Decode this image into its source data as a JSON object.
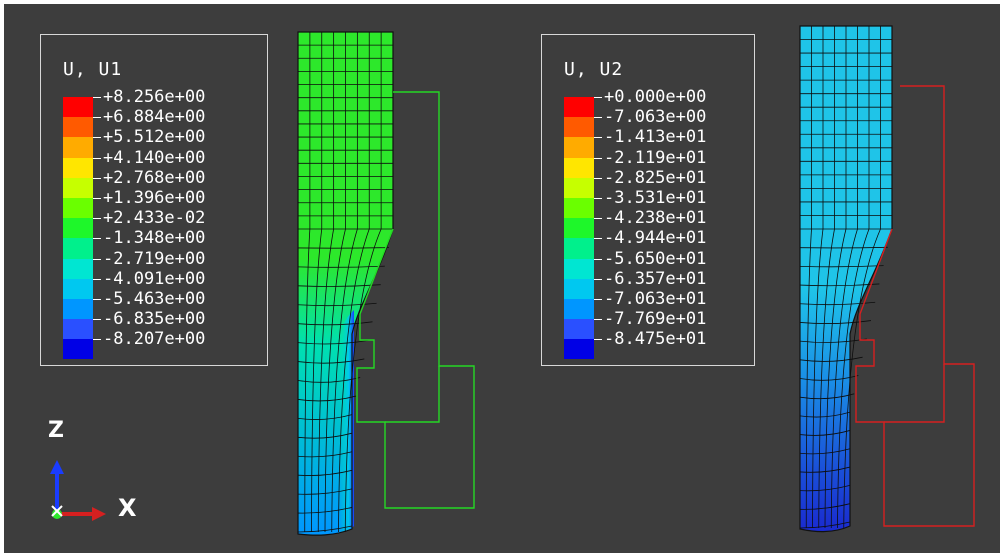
{
  "legends": [
    {
      "title": "U, U1",
      "ticks": [
        "+8.256e+00",
        "+6.884e+00",
        "+5.512e+00",
        "+4.140e+00",
        "+2.768e+00",
        "+1.396e+00",
        "+2.433e-02",
        "-1.348e+00",
        "-2.719e+00",
        "-4.091e+00",
        "-5.463e+00",
        "-6.835e+00",
        "-8.207e+00"
      ]
    },
    {
      "title": "U, U2",
      "ticks": [
        "+0.000e+00",
        "-7.063e+00",
        "-1.413e+01",
        "-2.119e+01",
        "-2.825e+01",
        "-3.531e+01",
        "-4.238e+01",
        "-4.944e+01",
        "-5.650e+01",
        "-6.357e+01",
        "-7.063e+01",
        "-7.769e+01",
        "-8.475e+01"
      ]
    }
  ],
  "colormap": [
    "#ff0000",
    "#ff5a00",
    "#ffab00",
    "#ffe600",
    "#c6ff00",
    "#6aff00",
    "#1ef72a",
    "#00f08c",
    "#00e6d2",
    "#00c8f0",
    "#0096ff",
    "#2a50ff",
    "#0000e6"
  ],
  "mesh_colors": {
    "u1_body": "#2de82b",
    "u1_low": "#1a3cff",
    "u1_mid": "#00e0b0",
    "u2_body": "#1fc4e8",
    "u2_low": "#1a3ad8",
    "u2_mid": "#1a6ee6",
    "outline_left": "#25d825",
    "outline_right": "#d62020"
  },
  "triad": {
    "z_label": "Z",
    "x_label": "X"
  }
}
